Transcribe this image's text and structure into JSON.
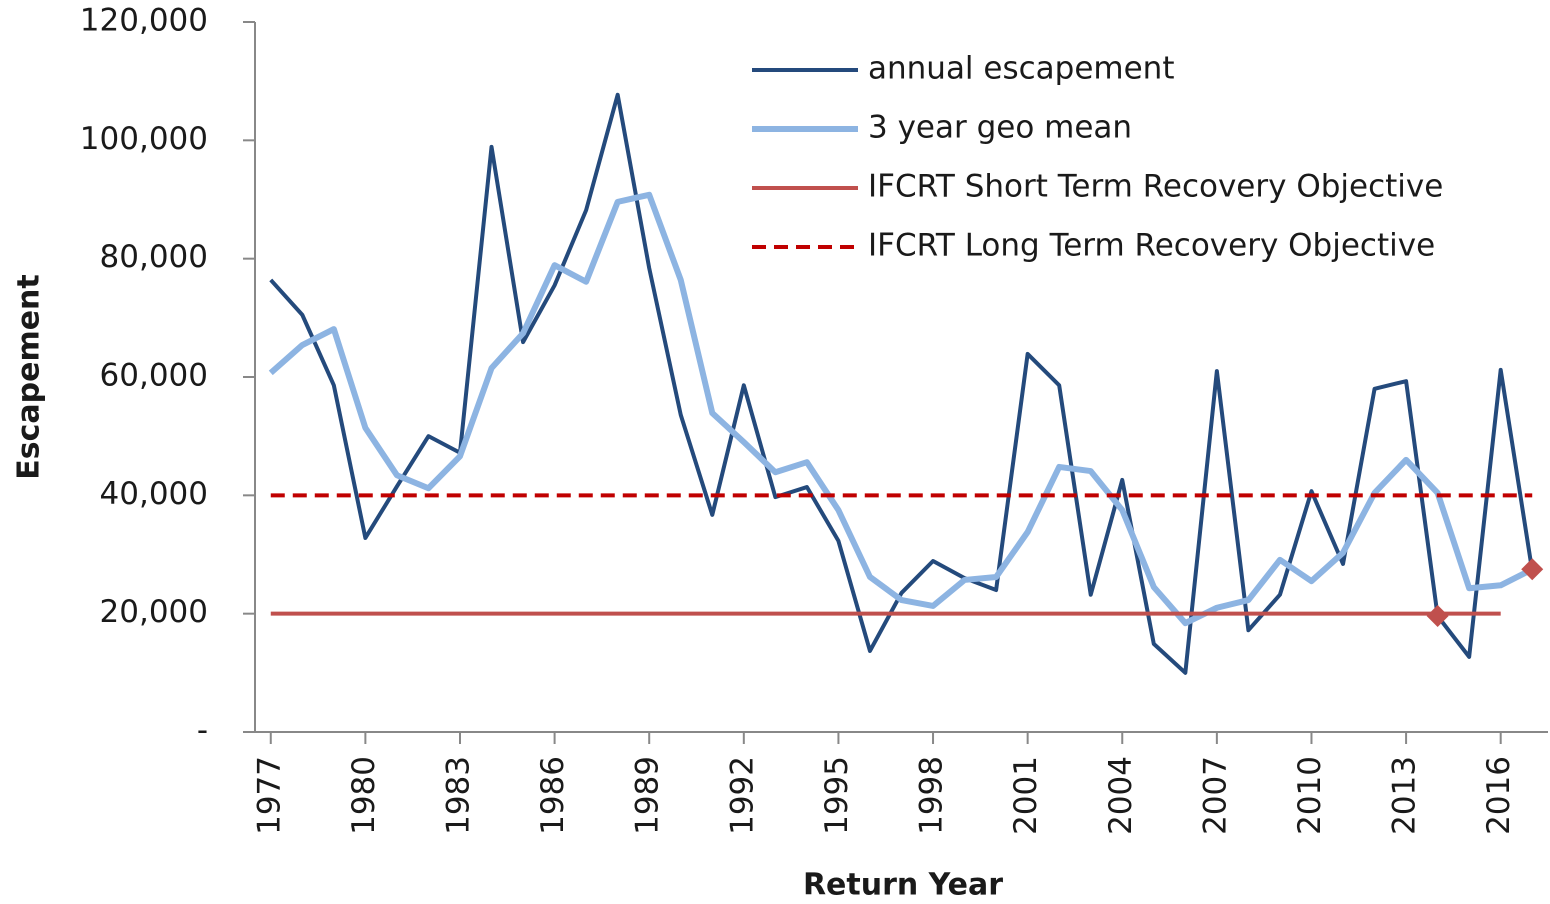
{
  "chart_data": {
    "type": "line",
    "x_label": "Return Year",
    "y_label": "Escapement",
    "x": [
      1977,
      1978,
      1979,
      1980,
      1981,
      1982,
      1983,
      1984,
      1985,
      1986,
      1987,
      1988,
      1989,
      1990,
      1991,
      1992,
      1993,
      1994,
      1995,
      1996,
      1997,
      1998,
      1999,
      2000,
      2001,
      2002,
      2003,
      2004,
      2005,
      2006,
      2007,
      2008,
      2009,
      2010,
      2011,
      2012,
      2013,
      2014,
      2015,
      2016,
      2017
    ],
    "series": [
      {
        "name": "annual escapement",
        "color": "#244a7c",
        "width": 4,
        "values": [
          76400,
          70500,
          58600,
          32800,
          41500,
          50000,
          47200,
          98900,
          65900,
          75500,
          88200,
          107700,
          78400,
          53600,
          36700,
          58600,
          39700,
          41400,
          32300,
          13700,
          23500,
          28900,
          26000,
          24000,
          63900,
          58600,
          23200,
          42600,
          14900,
          10000,
          61000,
          17200,
          23200,
          40700,
          28400,
          58000,
          59300,
          19600,
          12700,
          61200,
          27200
        ],
        "marker_indices": [
          37
        ],
        "marker_color": "#c0504d"
      },
      {
        "name": "3 year geo mean",
        "color": "#8db4e2",
        "width": 6,
        "values": [
          60700,
          65400,
          68100,
          51400,
          43400,
          41200,
          46600,
          61500,
          67400,
          78900,
          76100,
          89600,
          90800,
          76400,
          53900,
          49000,
          43900,
          45600,
          37500,
          26200,
          22300,
          21300,
          25700,
          26200,
          33800,
          44800,
          44100,
          37500,
          24500,
          18400,
          21000,
          22300,
          29100,
          25500,
          30300,
          40400,
          46000,
          40400,
          24300,
          24800,
          27500
        ],
        "marker_indices": [
          40
        ],
        "marker_color": "#c0504d"
      },
      {
        "name": "IFCRT Short Term Recovery Objective",
        "color": "#c0504d",
        "width": 4,
        "values": [
          20000,
          20000,
          20000,
          20000,
          20000,
          20000,
          20000,
          20000,
          20000,
          20000,
          20000,
          20000,
          20000,
          20000,
          20000,
          20000,
          20000,
          20000,
          20000,
          20000,
          20000,
          20000,
          20000,
          20000,
          20000,
          20000,
          20000,
          20000,
          20000,
          20000,
          20000,
          20000,
          20000,
          20000,
          20000,
          20000,
          20000,
          20000,
          20000,
          20000,
          null
        ]
      },
      {
        "name": "IFCRT Long Term Recovery Objective",
        "color": "#c00000",
        "width": 4,
        "dashed": true,
        "values": [
          40000,
          40000,
          40000,
          40000,
          40000,
          40000,
          40000,
          40000,
          40000,
          40000,
          40000,
          40000,
          40000,
          40000,
          40000,
          40000,
          40000,
          40000,
          40000,
          40000,
          40000,
          40000,
          40000,
          40000,
          40000,
          40000,
          40000,
          40000,
          40000,
          40000,
          40000,
          40000,
          40000,
          40000,
          40000,
          40000,
          40000,
          40000,
          40000,
          40000,
          40000
        ]
      }
    ],
    "xlim": [
      1976.5,
      2017.5
    ],
    "xticks": [
      1977,
      1980,
      1983,
      1986,
      1989,
      1992,
      1995,
      1998,
      2001,
      2004,
      2007,
      2010,
      2013,
      2016
    ],
    "ylim": [
      0,
      120000
    ],
    "yticks": [
      {
        "value": 0,
        "label": "-"
      },
      {
        "value": 20000,
        "label": "20,000"
      },
      {
        "value": 40000,
        "label": "40,000"
      },
      {
        "value": 60000,
        "label": "60,000"
      },
      {
        "value": 80000,
        "label": "80,000"
      },
      {
        "value": 100000,
        "label": "100,000"
      },
      {
        "value": 120000,
        "label": "120,000"
      }
    ],
    "grid": false,
    "legend": "top-right"
  }
}
